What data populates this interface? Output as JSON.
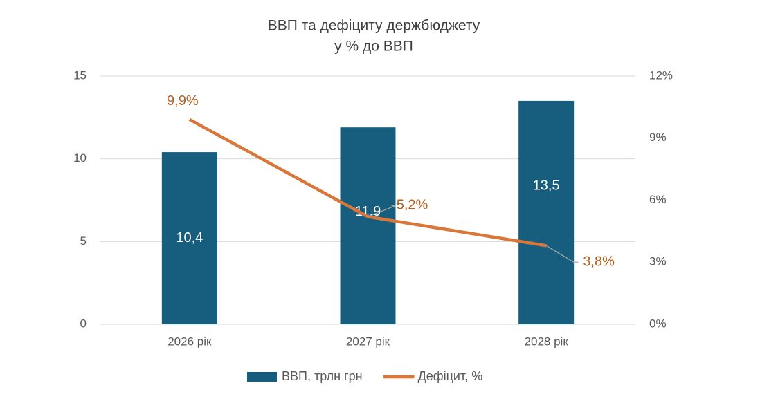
{
  "chart_data": {
    "type": "bar",
    "title": "ВВП та дефіциту держбюджету",
    "subtitle": "у % до ВВП",
    "categories": [
      "2026 рік",
      "2027 рік",
      "2028 рік"
    ],
    "series": [
      {
        "name": "ВВП, трлн грн",
        "type": "bar",
        "color": "#175e7e",
        "values": [
          10.4,
          11.9,
          13.5
        ],
        "value_labels": [
          "10,4",
          "11,9",
          "13,5"
        ]
      },
      {
        "name": "Дефіцит, %",
        "type": "line",
        "axis": "y2",
        "color": "#d9773a",
        "label_color": "#b5601f",
        "values": [
          9.9,
          5.2,
          3.8
        ],
        "value_labels": [
          "9,9%",
          "5,2%",
          "3,8%"
        ]
      }
    ],
    "ylim": [
      0,
      15
    ],
    "yticks": [
      0,
      5,
      10,
      15
    ],
    "y2lim": [
      0,
      12
    ],
    "y2ticks": [
      {
        "value": 0,
        "label": "0%"
      },
      {
        "value": 3,
        "label": "3%"
      },
      {
        "value": 6,
        "label": "6%"
      },
      {
        "value": 9,
        "label": "9%"
      },
      {
        "value": 12,
        "label": "12%"
      }
    ],
    "grid": true,
    "legend": "bottom"
  }
}
